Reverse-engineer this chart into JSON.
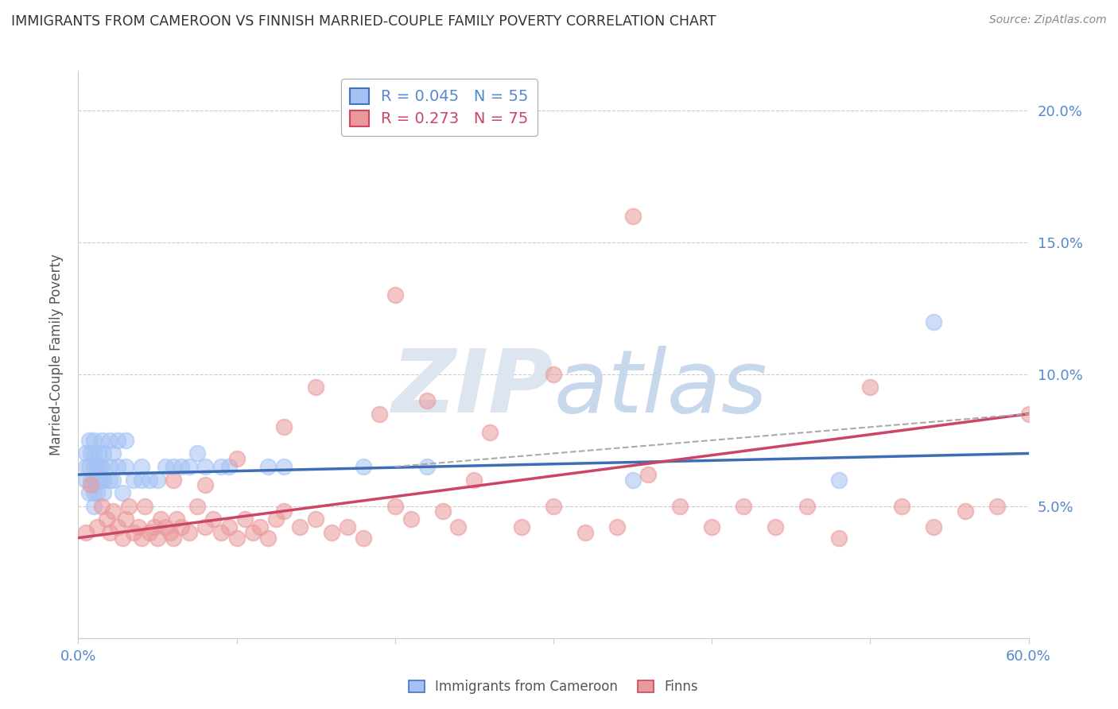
{
  "title": "IMMIGRANTS FROM CAMEROON VS FINNISH MARRIED-COUPLE FAMILY POVERTY CORRELATION CHART",
  "source": "Source: ZipAtlas.com",
  "ylabel": "Married-Couple Family Poverty",
  "xlim": [
    0,
    0.6
  ],
  "ylim": [
    0.0,
    0.215
  ],
  "yticks": [
    0.05,
    0.1,
    0.15,
    0.2
  ],
  "ytick_labels": [
    "5.0%",
    "10.0%",
    "15.0%",
    "20.0%"
  ],
  "xticks": [
    0.0,
    0.1,
    0.2,
    0.3,
    0.4,
    0.5,
    0.6
  ],
  "legend_entries": [
    {
      "label": "R = 0.045   N = 55",
      "color": "#a4c2f4"
    },
    {
      "label": "R = 0.273   N = 75",
      "color": "#ea9999"
    }
  ],
  "blue_scatter_x": [
    0.005,
    0.005,
    0.005,
    0.007,
    0.007,
    0.007,
    0.008,
    0.008,
    0.01,
    0.01,
    0.01,
    0.01,
    0.01,
    0.01,
    0.012,
    0.012,
    0.013,
    0.013,
    0.014,
    0.015,
    0.015,
    0.015,
    0.016,
    0.016,
    0.016,
    0.02,
    0.02,
    0.02,
    0.022,
    0.022,
    0.025,
    0.025,
    0.028,
    0.03,
    0.03,
    0.035,
    0.04,
    0.04,
    0.045,
    0.05,
    0.055,
    0.06,
    0.065,
    0.07,
    0.075,
    0.08,
    0.09,
    0.095,
    0.12,
    0.13,
    0.18,
    0.22,
    0.35,
    0.48,
    0.54
  ],
  "blue_scatter_y": [
    0.06,
    0.065,
    0.07,
    0.055,
    0.065,
    0.075,
    0.06,
    0.07,
    0.05,
    0.055,
    0.06,
    0.065,
    0.07,
    0.075,
    0.055,
    0.065,
    0.06,
    0.07,
    0.065,
    0.06,
    0.065,
    0.075,
    0.055,
    0.06,
    0.07,
    0.06,
    0.065,
    0.075,
    0.06,
    0.07,
    0.065,
    0.075,
    0.055,
    0.065,
    0.075,
    0.06,
    0.06,
    0.065,
    0.06,
    0.06,
    0.065,
    0.065,
    0.065,
    0.065,
    0.07,
    0.065,
    0.065,
    0.065,
    0.065,
    0.065,
    0.065,
    0.065,
    0.06,
    0.06,
    0.12
  ],
  "pink_scatter_x": [
    0.005,
    0.008,
    0.012,
    0.015,
    0.018,
    0.02,
    0.022,
    0.025,
    0.028,
    0.03,
    0.032,
    0.035,
    0.038,
    0.04,
    0.042,
    0.045,
    0.048,
    0.05,
    0.052,
    0.055,
    0.058,
    0.06,
    0.062,
    0.065,
    0.07,
    0.075,
    0.08,
    0.085,
    0.09,
    0.095,
    0.1,
    0.105,
    0.11,
    0.115,
    0.12,
    0.125,
    0.13,
    0.14,
    0.15,
    0.16,
    0.17,
    0.18,
    0.19,
    0.2,
    0.21,
    0.22,
    0.23,
    0.24,
    0.25,
    0.26,
    0.28,
    0.3,
    0.32,
    0.34,
    0.36,
    0.38,
    0.4,
    0.42,
    0.44,
    0.46,
    0.48,
    0.5,
    0.52,
    0.54,
    0.56,
    0.58,
    0.6,
    0.35,
    0.3,
    0.2,
    0.15,
    0.13,
    0.1,
    0.08,
    0.06
  ],
  "pink_scatter_y": [
    0.04,
    0.058,
    0.042,
    0.05,
    0.045,
    0.04,
    0.048,
    0.042,
    0.038,
    0.045,
    0.05,
    0.04,
    0.042,
    0.038,
    0.05,
    0.04,
    0.042,
    0.038,
    0.045,
    0.042,
    0.04,
    0.038,
    0.045,
    0.042,
    0.04,
    0.05,
    0.042,
    0.045,
    0.04,
    0.042,
    0.038,
    0.045,
    0.04,
    0.042,
    0.038,
    0.045,
    0.048,
    0.042,
    0.045,
    0.04,
    0.042,
    0.038,
    0.085,
    0.05,
    0.045,
    0.09,
    0.048,
    0.042,
    0.06,
    0.078,
    0.042,
    0.05,
    0.04,
    0.042,
    0.062,
    0.05,
    0.042,
    0.05,
    0.042,
    0.05,
    0.038,
    0.095,
    0.05,
    0.042,
    0.048,
    0.05,
    0.085,
    0.16,
    0.1,
    0.13,
    0.095,
    0.08,
    0.068,
    0.058,
    0.06
  ],
  "blue_line_x": [
    0.0,
    0.6
  ],
  "blue_line_y": [
    0.062,
    0.07
  ],
  "pink_line_x": [
    0.0,
    0.6
  ],
  "pink_line_y": [
    0.038,
    0.085
  ],
  "dashed_line_x": [
    0.2,
    0.6
  ],
  "dashed_line_y": [
    0.065,
    0.085
  ],
  "scatter_alpha": 0.55,
  "scatter_size": 200,
  "blue_color": "#a4c2f4",
  "pink_color": "#ea9999",
  "blue_line_color": "#3d6eb5",
  "pink_line_color": "#cc4466",
  "dashed_line_color": "#aaaaaa",
  "background_color": "#ffffff",
  "grid_color": "#cccccc",
  "title_color": "#333333",
  "axis_label_color": "#555555",
  "tick_color": "#5588cc",
  "watermark_color": "#dde5f0",
  "watermark_fontsize": 80
}
